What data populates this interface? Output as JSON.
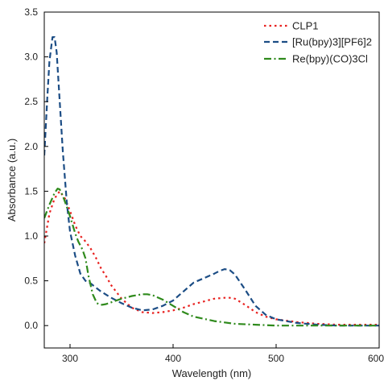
{
  "chart_data": {
    "type": "line",
    "xlabel": "Wavelength (nm)",
    "ylabel": "Absorbance (a.u.)",
    "xlim": [
      275,
      600
    ],
    "ylim": [
      -0.25,
      3.5
    ],
    "xticks": [
      300,
      400,
      500,
      600
    ],
    "yticks": [
      0.0,
      0.5,
      1.0,
      1.5,
      2.0,
      2.5,
      3.0,
      3.5
    ],
    "ytick_labels": [
      "0.0",
      "0.5",
      "1.0",
      "1.5",
      "2.0",
      "2.5",
      "3.0",
      "3.5"
    ],
    "grid": false,
    "legend_position": "top-right",
    "series": [
      {
        "name": "CLP1",
        "color": "#e8211f",
        "dash": "dot",
        "x": [
          275,
          280,
          285,
          290,
          295,
          300,
          305,
          310,
          315,
          320,
          325,
          330,
          335,
          340,
          350,
          360,
          370,
          380,
          390,
          400,
          410,
          420,
          430,
          440,
          450,
          455,
          460,
          470,
          480,
          490,
          500,
          520,
          540,
          560,
          580,
          600
        ],
        "y": [
          0.92,
          1.25,
          1.42,
          1.5,
          1.42,
          1.28,
          1.12,
          1.0,
          0.94,
          0.86,
          0.76,
          0.64,
          0.55,
          0.45,
          0.3,
          0.2,
          0.15,
          0.14,
          0.15,
          0.17,
          0.2,
          0.24,
          0.27,
          0.3,
          0.31,
          0.31,
          0.3,
          0.23,
          0.15,
          0.1,
          0.07,
          0.04,
          0.02,
          0.01,
          0.01,
          0.01
        ]
      },
      {
        "name": "[Ru(bpy)3][PF6]2",
        "color": "#1c4d85",
        "dash": "dash",
        "x": [
          275,
          278,
          280,
          283,
          285,
          287,
          290,
          293,
          297,
          300,
          305,
          310,
          315,
          320,
          330,
          340,
          350,
          360,
          370,
          380,
          390,
          400,
          410,
          420,
          430,
          440,
          445,
          450,
          455,
          460,
          470,
          480,
          490,
          500,
          520,
          540,
          560,
          580,
          600
        ],
        "y": [
          1.9,
          2.55,
          2.95,
          3.22,
          3.22,
          3.05,
          2.5,
          1.95,
          1.35,
          1.05,
          0.78,
          0.58,
          0.5,
          0.47,
          0.38,
          0.31,
          0.25,
          0.2,
          0.17,
          0.18,
          0.22,
          0.28,
          0.38,
          0.48,
          0.53,
          0.58,
          0.61,
          0.63,
          0.62,
          0.57,
          0.4,
          0.22,
          0.12,
          0.07,
          0.03,
          0.01,
          0.0,
          0.0,
          0.0
        ]
      },
      {
        "name": "Re(bpy)(CO)3Cl",
        "color": "#2f8a1c",
        "dash": "dashdot",
        "x": [
          275,
          280,
          285,
          288,
          290,
          293,
          297,
          300,
          305,
          308,
          312,
          315,
          318,
          322,
          326,
          330,
          335,
          340,
          350,
          360,
          370,
          375,
          380,
          390,
          400,
          410,
          420,
          440,
          460,
          480,
          500,
          520,
          540,
          560,
          580,
          600
        ],
        "y": [
          1.2,
          1.35,
          1.48,
          1.53,
          1.52,
          1.45,
          1.32,
          1.22,
          1.03,
          0.94,
          0.85,
          0.75,
          0.55,
          0.35,
          0.25,
          0.23,
          0.24,
          0.26,
          0.3,
          0.33,
          0.35,
          0.35,
          0.34,
          0.29,
          0.22,
          0.15,
          0.1,
          0.05,
          0.02,
          0.01,
          0.0,
          0.0,
          0.0,
          0.0,
          0.0,
          0.0
        ]
      }
    ]
  }
}
